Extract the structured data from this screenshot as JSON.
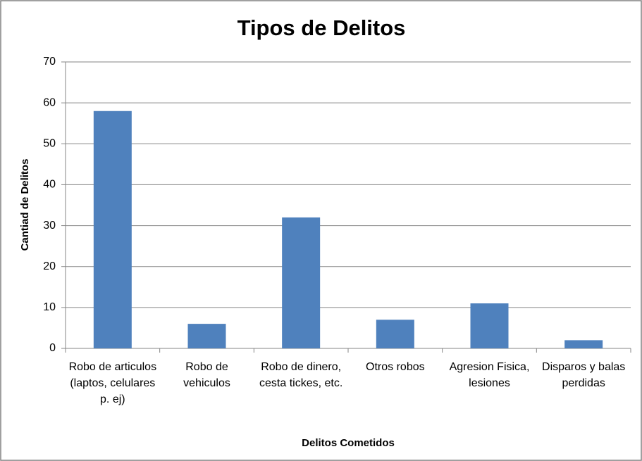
{
  "chart_data": {
    "type": "bar",
    "title": "Tipos de Delitos",
    "x_label": "Delitos Cometidos",
    "y_label": "Cantiad de Delitos",
    "categories": [
      "Robo de articulos (laptos, celulares p. ej)",
      "Robo de vehiculos",
      "Robo de dinero, cesta tickes, etc.",
      "Otros robos",
      "Agresion Fisica, lesiones",
      "Disparos y balas perdidas"
    ],
    "values": [
      58,
      6,
      32,
      7,
      11,
      2
    ],
    "color": "#4f81bd",
    "ylim": [
      0,
      70
    ],
    "yticks": [
      0,
      10,
      20,
      30,
      40,
      50,
      60,
      70
    ],
    "grid": true
  }
}
